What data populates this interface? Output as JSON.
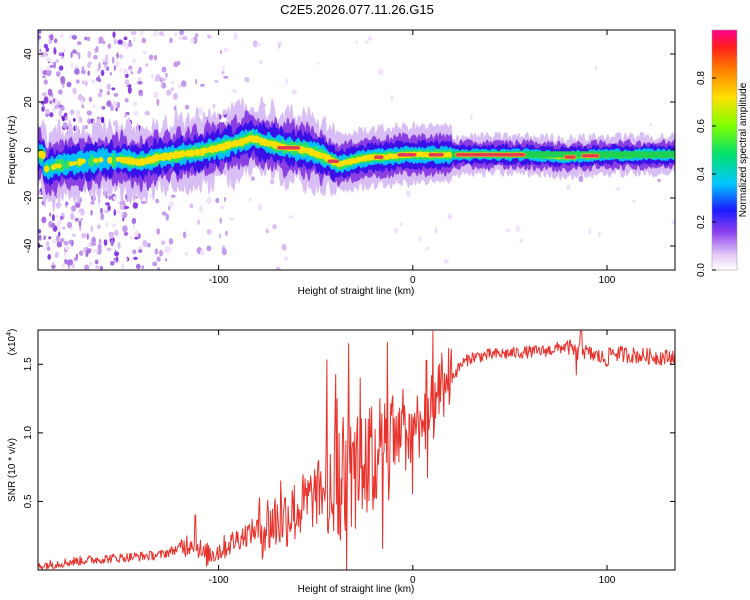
{
  "title": "C2E5.2026.077.11.26.G15",
  "colors": {
    "snr_line": "#e8312b",
    "spectral_core": "#e03a55",
    "ridge_outline": "#5500dd"
  },
  "chart_data": [
    {
      "type": "heatmap",
      "title": "C2E5.2026.077.11.26.G15",
      "xlabel": "Height of straight line (km)",
      "ylabel": "Frequency (Hz)",
      "xlim": [
        -193,
        135
      ],
      "ylim": [
        -50,
        50
      ],
      "xticks": [
        -100,
        0,
        100
      ],
      "xtick_labels": [
        "-100",
        "0",
        "100"
      ],
      "yticks": [
        40,
        20,
        0,
        -20,
        -40
      ],
      "ytick_labels": [
        "40",
        "20",
        "0",
        "-20",
        "-40"
      ],
      "colorbar": {
        "label": "Normalized spectral amplitude",
        "range": [
          0,
          1
        ],
        "ticks": [
          0.0,
          0.2,
          0.4,
          0.6,
          0.8
        ],
        "tick_labels": [
          "0.0",
          "0.2",
          "0.4",
          "0.6",
          "0.8"
        ]
      },
      "ridge_centerline": {
        "x": [
          -190,
          -180,
          -170,
          -160,
          -150,
          -140,
          -130,
          -120,
          -110,
          -100,
          -90,
          -83,
          -75,
          -65,
          -55,
          -45,
          -38,
          -33,
          -28,
          -22,
          -15,
          -5,
          0,
          10,
          20,
          40,
          60,
          80,
          100,
          120,
          135
        ],
        "y": [
          -8,
          -6,
          -5,
          -4,
          -4,
          -5,
          -3,
          -2,
          -1,
          1,
          3,
          5,
          3,
          1,
          0,
          -3,
          -6,
          -5,
          -4,
          -3,
          -3,
          -2,
          -2,
          -2,
          -2,
          -2,
          -2,
          -3,
          -2,
          -2,
          -2
        ]
      }
    },
    {
      "type": "line",
      "xlabel": "Height of straight line (km)",
      "ylabel": "SNR (10 * v/v)",
      "y_multiplier_label": "(x10",
      "y_multiplier_exponent": "4",
      "y_multiplier_close": ")",
      "xlim": [
        -193,
        135
      ],
      "ylim": [
        0,
        17500
      ],
      "xticks": [
        -100,
        0,
        100
      ],
      "xtick_labels": [
        "-100",
        "0",
        "100"
      ],
      "yticks": [
        5000,
        10000,
        15000
      ],
      "ytick_labels": [
        "0.5",
        "1.0",
        "1.5"
      ],
      "series": [
        {
          "name": "SNR",
          "x": [
            -193,
            -170,
            -150,
            -130,
            -120,
            -112,
            -108,
            -100,
            -90,
            -80,
            -70,
            -60,
            -50,
            -40,
            -30,
            -25,
            -20,
            -15,
            -10,
            -5,
            0,
            5,
            10,
            15,
            20,
            25,
            30,
            40,
            50,
            60,
            70,
            75,
            80,
            83,
            85,
            87,
            90,
            95,
            100,
            102,
            105,
            110,
            120,
            130,
            135
          ],
          "y": [
            300,
            700,
            900,
            1100,
            1600,
            2200,
            1000,
            1400,
            2300,
            3000,
            3600,
            4300,
            5500,
            6500,
            7000,
            7500,
            8000,
            8500,
            9000,
            9600,
            10300,
            11000,
            11700,
            12700,
            14000,
            15000,
            15500,
            15700,
            15800,
            15900,
            16000,
            16200,
            16300,
            16000,
            15700,
            16100,
            15800,
            15600,
            15300,
            15900,
            15800,
            15700,
            15600,
            15500,
            15600
          ]
        }
      ]
    }
  ]
}
